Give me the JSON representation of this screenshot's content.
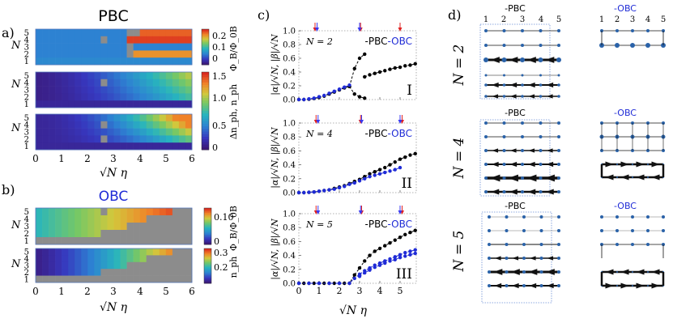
{
  "colors": {
    "pbc": "#000000",
    "obc": "#1f2bd6",
    "arrow_blue": "#3a3af0",
    "arrow_red": "#e02020",
    "mask": "#8c8c8c",
    "node": "#2a62a8"
  },
  "panel_labels": {
    "a": "a)",
    "b": "b)",
    "c": "c)",
    "d": "d)"
  },
  "chart_data": [
    {
      "id": "a",
      "type": "heatmap",
      "title": "PBC",
      "xlabel": "√N η",
      "ylabel": "N",
      "xlim": [
        0,
        6
      ],
      "x_ticks": [
        "0",
        "1",
        "2",
        "3",
        "4",
        "5",
        "6"
      ],
      "y_ticks": [
        "1",
        "2",
        "3",
        "4",
        "5"
      ],
      "rows": [
        "Φ_B/Φ_0B",
        "Δn_ph",
        "n_ph"
      ],
      "colorbars": [
        {
          "label": "Φ_B/Φ_0B",
          "ticks": [
            "0",
            "0.1",
            "0.2"
          ],
          "range": [
            0,
            0.25
          ]
        },
        {
          "label": "Δn_ph, n_ph",
          "ticks": [
            "0",
            "0.5",
            "1.0",
            "1.5"
          ],
          "range": [
            0,
            1.6
          ]
        }
      ]
    },
    {
      "id": "b",
      "type": "heatmap",
      "title": "OBC",
      "xlabel": "√N η",
      "ylabel": "N",
      "xlim": [
        0,
        6
      ],
      "x_ticks": [
        "0",
        "1",
        "2",
        "3",
        "4",
        "5",
        "6"
      ],
      "y_ticks": [
        "1",
        "2",
        "3",
        "4",
        "5"
      ],
      "rows": [
        "Φ_B/Φ_0B",
        "n_ph"
      ],
      "colorbars": [
        {
          "label": "Φ_B/Φ_0B",
          "ticks": [
            "0",
            "0.10"
          ],
          "range": [
            0,
            0.12
          ]
        },
        {
          "label": "n_ph",
          "ticks": [
            "0.2",
            "0.3"
          ],
          "range": [
            0.15,
            0.35
          ]
        }
      ]
    },
    {
      "id": "c",
      "type": "line",
      "xlabel": "√N η",
      "ylabel": "|α|/√N, |β|/√N",
      "xlim": [
        0,
        5.8
      ],
      "ylim": [
        0,
        1.0
      ],
      "x_ticks": [
        "0",
        "1",
        "2",
        "3",
        "4",
        "5"
      ],
      "y_ticks": [
        "0.0",
        "0.2",
        "0.4",
        "0.6",
        "0.8",
        "1.0"
      ],
      "legend": {
        "pbc": "-PBC",
        "obc": "-OBC"
      },
      "subplots": [
        {
          "label": "N = 2",
          "roman": "I",
          "blue_arrows": [
            0.9,
            3.0
          ],
          "red_arrows": [
            0.8,
            3.05,
            5.0
          ],
          "series": [
            {
              "name": "PBC |α|",
              "x": [
                0,
                0.25,
                0.5,
                0.75,
                1,
                1.25,
                1.5,
                1.75,
                2,
                2.25,
                2.5
              ],
              "values": [
                0,
                0,
                0.005,
                0.015,
                0.03,
                0.05,
                0.08,
                0.11,
                0.14,
                0.17,
                0.19
              ]
            },
            {
              "name": "PBC |α| upper",
              "x": [
                2.5,
                2.75,
                3,
                3.25
              ],
              "values": [
                0.19,
                0.45,
                0.6,
                0.66
              ]
            },
            {
              "name": "PBC |α| lower",
              "x": [
                2.5,
                2.75,
                3,
                3.25
              ],
              "values": [
                0.19,
                0.08,
                0.04,
                0.02
              ]
            },
            {
              "name": "PBC |β|",
              "x": [
                3.25,
                3.5,
                3.75,
                4,
                4.25,
                4.5,
                4.75,
                5,
                5.25,
                5.5,
                5.75
              ],
              "values": [
                0.33,
                0.36,
                0.38,
                0.4,
                0.42,
                0.44,
                0.46,
                0.47,
                0.49,
                0.5,
                0.52
              ]
            },
            {
              "name": "OBC",
              "x": [
                0,
                0.25,
                0.5,
                0.75,
                1,
                1.25,
                1.5,
                1.75,
                2,
                2.25,
                2.5
              ],
              "values": [
                0,
                0,
                0.01,
                0.02,
                0.04,
                0.06,
                0.09,
                0.12,
                0.15,
                0.18,
                0.21
              ]
            }
          ]
        },
        {
          "label": "N = 4",
          "roman": "II",
          "blue_arrows": [
            0.95,
            3.1,
            5.0
          ],
          "red_arrows": [
            0.85,
            3.05,
            5.1
          ],
          "series": [
            {
              "name": "PBC",
              "x": [
                0,
                0.25,
                0.5,
                0.75,
                1,
                1.25,
                1.5,
                1.75,
                2,
                2.25,
                2.5,
                2.75,
                3,
                3.25,
                3.5,
                3.75,
                4,
                4.25,
                4.5,
                4.75,
                5,
                5.25,
                5.5,
                5.75
              ],
              "values": [
                0,
                0,
                0.005,
                0.01,
                0.02,
                0.03,
                0.04,
                0.06,
                0.08,
                0.1,
                0.13,
                0.16,
                0.19,
                0.23,
                0.27,
                0.3,
                0.33,
                0.36,
                0.4,
                0.44,
                0.48,
                0.51,
                0.54,
                0.56
              ]
            },
            {
              "name": "OBC",
              "x": [
                0,
                0.25,
                0.5,
                0.75,
                1,
                1.25,
                1.5,
                1.75,
                2,
                2.25,
                2.5,
                2.75,
                3,
                3.25,
                3.5,
                3.75,
                4,
                4.25,
                4.5,
                4.75,
                5
              ],
              "values": [
                0,
                0,
                0.005,
                0.01,
                0.02,
                0.03,
                0.04,
                0.05,
                0.07,
                0.09,
                0.12,
                0.14,
                0.17,
                0.2,
                0.23,
                0.25,
                0.27,
                0.29,
                0.31,
                0.33,
                0.36
              ]
            }
          ]
        },
        {
          "label": "N = 5",
          "roman": "III",
          "blue_arrows": [
            0.95,
            3.05,
            5.0
          ],
          "red_arrows": [
            0.85,
            3.1,
            5.1
          ],
          "series": [
            {
              "name": "PBC",
              "x": [
                0,
                0.25,
                0.5,
                0.75,
                1,
                1.25,
                1.5,
                1.75,
                2,
                2.25,
                2.5,
                2.75,
                3,
                3.25,
                3.5,
                3.75,
                4,
                4.25,
                4.5,
                4.75,
                5,
                5.25,
                5.5,
                5.75
              ],
              "values": [
                0,
                0,
                0,
                0,
                0,
                0,
                0,
                0,
                0,
                0,
                0,
                0.12,
                0.22,
                0.32,
                0.4,
                0.46,
                0.5,
                0.54,
                0.58,
                0.62,
                0.66,
                0.7,
                0.73,
                0.76
              ]
            },
            {
              "name": "OBC |α|",
              "x": [
                0,
                0.5,
                1,
                1.5,
                2,
                2.5,
                2.75,
                3,
                3.25,
                3.5,
                3.75,
                4,
                4.25,
                4.5,
                4.75,
                5,
                5.25,
                5.5,
                5.75
              ],
              "values": [
                0,
                0,
                0,
                0,
                0,
                0,
                0.07,
                0.13,
                0.18,
                0.22,
                0.26,
                0.29,
                0.32,
                0.35,
                0.38,
                0.41,
                0.44,
                0.46,
                0.48
              ]
            },
            {
              "name": "OBC |β|",
              "x": [
                3,
                3.25,
                3.5,
                3.75,
                4,
                4.25,
                4.5,
                4.75,
                5,
                5.25,
                5.5,
                5.75
              ],
              "values": [
                0.1,
                0.15,
                0.19,
                0.23,
                0.26,
                0.29,
                0.32,
                0.34,
                0.37,
                0.39,
                0.41,
                0.43
              ]
            }
          ]
        }
      ]
    }
  ],
  "panel_d": {
    "col_numbers": [
      "1",
      "2",
      "3",
      "4",
      "5"
    ],
    "n_labels": [
      "N = 2",
      "N = 4",
      "N = 5"
    ],
    "pbc_label": "-PBC",
    "obc_label": "-OBC"
  }
}
